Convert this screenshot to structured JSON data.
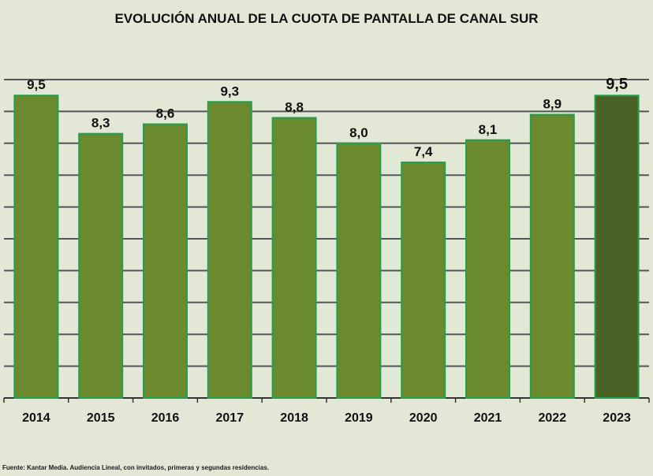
{
  "chart_data": {
    "type": "bar",
    "title": "EVOLUCIÓN ANUAL DE LA CUOTA DE PANTALLA DE CANAL SUR",
    "categories": [
      "2014",
      "2015",
      "2016",
      "2017",
      "2018",
      "2019",
      "2020",
      "2021",
      "2022",
      "2023"
    ],
    "values": [
      9.5,
      8.3,
      8.6,
      9.3,
      8.8,
      8.0,
      7.4,
      8.1,
      8.9,
      9.5
    ],
    "data_labels": [
      "9,5",
      "8,3",
      "8,6",
      "9,3",
      "8,8",
      "8,0",
      "7,4",
      "8,1",
      "8,9",
      "9,5"
    ],
    "highlight_index": 9,
    "ylim": [
      0,
      10
    ],
    "grid": true,
    "xlabel": "",
    "ylabel": "",
    "colors": {
      "bar": "#6b8a2e",
      "bar_highlight": "#4b6227",
      "bar_border": "#22a04c",
      "grid": "#555555",
      "background": "#e2e8d5"
    }
  },
  "source": "Fuente: Kantar Media. Audiencia Lineal, con invitados, primeras y segundas residencias."
}
